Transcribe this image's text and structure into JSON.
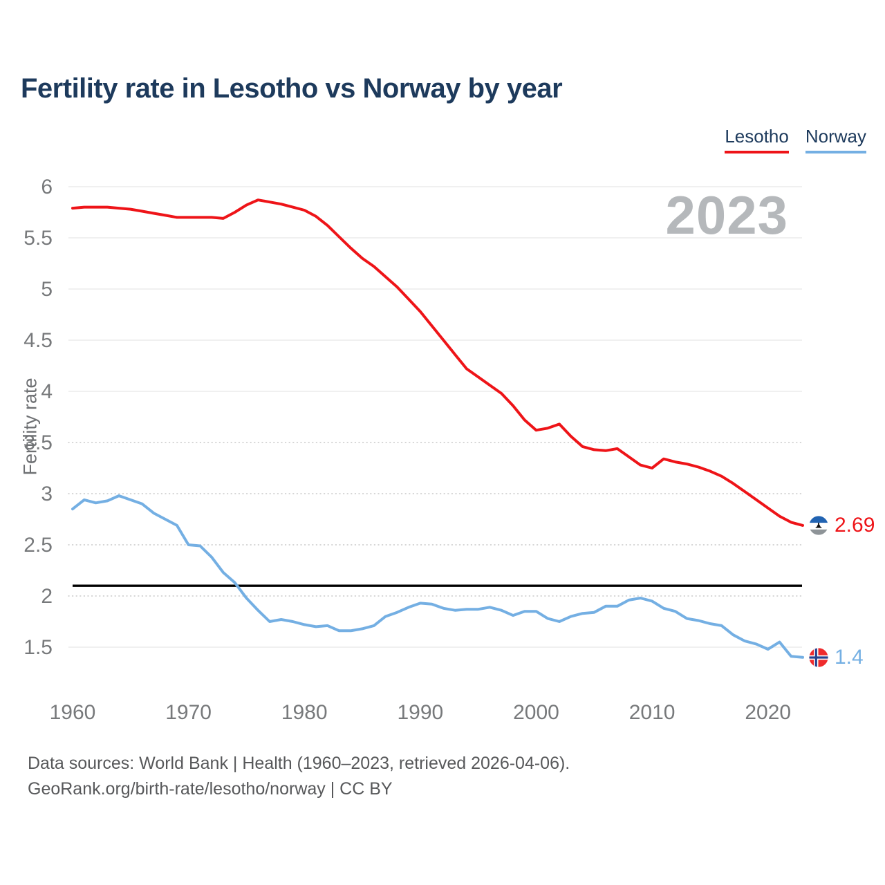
{
  "title": "Fertility rate in Lesotho vs Norway by year",
  "watermark_year": "2023",
  "legend": {
    "items": [
      {
        "label": "Lesotho",
        "color": "#ee1418"
      },
      {
        "label": "Norway",
        "color": "#74afe3"
      }
    ]
  },
  "end_labels": {
    "lesotho": "2.69",
    "norway": "1.4"
  },
  "footer": {
    "line1": "Data sources: World Bank | Health (1960–2023, retrieved 2026-04-06).",
    "line2": "GeoRank.org/birth-rate/lesotho/norway | CC BY"
  },
  "chart_data": {
    "type": "line",
    "title": "Fertility rate in Lesotho vs Norway by year",
    "xlabel": "",
    "ylabel": "Fertility rate",
    "ylim": [
      1.5,
      6
    ],
    "xlim": [
      1960,
      2023
    ],
    "y_ticks": [
      6,
      5.5,
      5,
      4.5,
      4,
      3.5,
      3,
      2.5,
      2,
      1.5
    ],
    "x_ticks": [
      1960,
      1970,
      1980,
      1990,
      2000,
      2010,
      2020
    ],
    "grid": "horizontal",
    "legend_position": "top-right",
    "reference_line": {
      "value": 2.1,
      "color": "#000000"
    },
    "years": [
      1960,
      1961,
      1962,
      1963,
      1964,
      1965,
      1966,
      1967,
      1968,
      1969,
      1970,
      1971,
      1972,
      1973,
      1974,
      1975,
      1976,
      1977,
      1978,
      1979,
      1980,
      1981,
      1982,
      1983,
      1984,
      1985,
      1986,
      1987,
      1988,
      1989,
      1990,
      1991,
      1992,
      1993,
      1994,
      1995,
      1996,
      1997,
      1998,
      1999,
      2000,
      2001,
      2002,
      2003,
      2004,
      2005,
      2006,
      2007,
      2008,
      2009,
      2010,
      2011,
      2012,
      2013,
      2014,
      2015,
      2016,
      2017,
      2018,
      2019,
      2020,
      2021,
      2022,
      2023
    ],
    "series": [
      {
        "name": "Lesotho",
        "color": "#ee1418",
        "end_value": 2.69,
        "values": [
          5.79,
          5.8,
          5.8,
          5.8,
          5.79,
          5.78,
          5.76,
          5.74,
          5.72,
          5.7,
          5.7,
          5.7,
          5.7,
          5.69,
          5.75,
          5.82,
          5.87,
          5.85,
          5.83,
          5.8,
          5.77,
          5.71,
          5.62,
          5.51,
          5.4,
          5.3,
          5.22,
          5.12,
          5.02,
          4.9,
          4.78,
          4.64,
          4.5,
          4.36,
          4.22,
          4.14,
          4.06,
          3.98,
          3.86,
          3.72,
          3.62,
          3.64,
          3.68,
          3.56,
          3.46,
          3.43,
          3.42,
          3.44,
          3.36,
          3.28,
          3.25,
          3.34,
          3.31,
          3.29,
          3.26,
          3.22,
          3.17,
          3.1,
          3.02,
          2.94,
          2.86,
          2.78,
          2.72,
          2.69
        ]
      },
      {
        "name": "Norway",
        "color": "#74afe3",
        "end_value": 1.4,
        "values": [
          2.85,
          2.94,
          2.91,
          2.93,
          2.98,
          2.94,
          2.9,
          2.81,
          2.75,
          2.69,
          2.5,
          2.49,
          2.38,
          2.23,
          2.13,
          1.98,
          1.86,
          1.75,
          1.77,
          1.75,
          1.72,
          1.7,
          1.71,
          1.66,
          1.66,
          1.68,
          1.71,
          1.8,
          1.84,
          1.89,
          1.93,
          1.92,
          1.88,
          1.86,
          1.87,
          1.87,
          1.89,
          1.86,
          1.81,
          1.85,
          1.85,
          1.78,
          1.75,
          1.8,
          1.83,
          1.84,
          1.9,
          1.9,
          1.96,
          1.98,
          1.95,
          1.88,
          1.85,
          1.78,
          1.76,
          1.73,
          1.71,
          1.62,
          1.56,
          1.53,
          1.48,
          1.55,
          1.41,
          1.4
        ]
      }
    ]
  }
}
